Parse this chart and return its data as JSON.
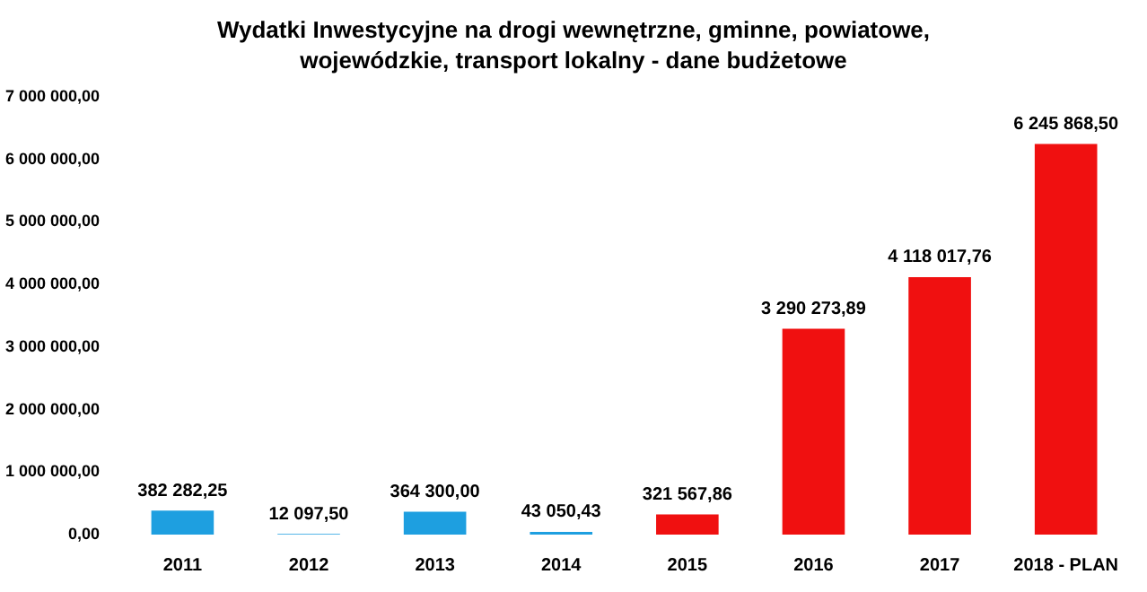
{
  "chart_data": {
    "type": "bar",
    "title": "Wydatki Inwestycyjne na drogi wewnętrzne, gminne, powiatowe, wojewódzkie, transport lokalny - dane budżetowe",
    "categories": [
      "2011",
      "2012",
      "2013",
      "2014",
      "2015",
      "2016",
      "2017",
      "2018 - PLAN"
    ],
    "values": [
      382282.25,
      12097.5,
      364300,
      43050.43,
      321567.86,
      3290273.89,
      4118017.76,
      6245868.5
    ],
    "colors": [
      "#1e9fe0",
      "#1e9fe0",
      "#1e9fe0",
      "#1e9fe0",
      "#f01010",
      "#f01010",
      "#f01010",
      "#f01010"
    ],
    "value_labels": [
      "382 282,25",
      "12 097,50",
      "364 300,00",
      "43 050,43",
      "321 567,86",
      "3 290 273,89",
      "4 118 017,76",
      "6 245 868,50"
    ],
    "ylim": [
      0,
      7000000
    ],
    "yticks": [
      {
        "value": 0,
        "label": "0,00"
      },
      {
        "value": 1000000,
        "label": "1 000 000,00"
      },
      {
        "value": 2000000,
        "label": "2 000 000,00"
      },
      {
        "value": 3000000,
        "label": "3 000 000,00"
      },
      {
        "value": 4000000,
        "label": "4 000 000,00"
      },
      {
        "value": 5000000,
        "label": "5 000 000,00"
      },
      {
        "value": 6000000,
        "label": "6 000 000,00"
      },
      {
        "value": 7000000,
        "label": "7 000 000,00"
      }
    ],
    "grid": false,
    "legend": false
  }
}
